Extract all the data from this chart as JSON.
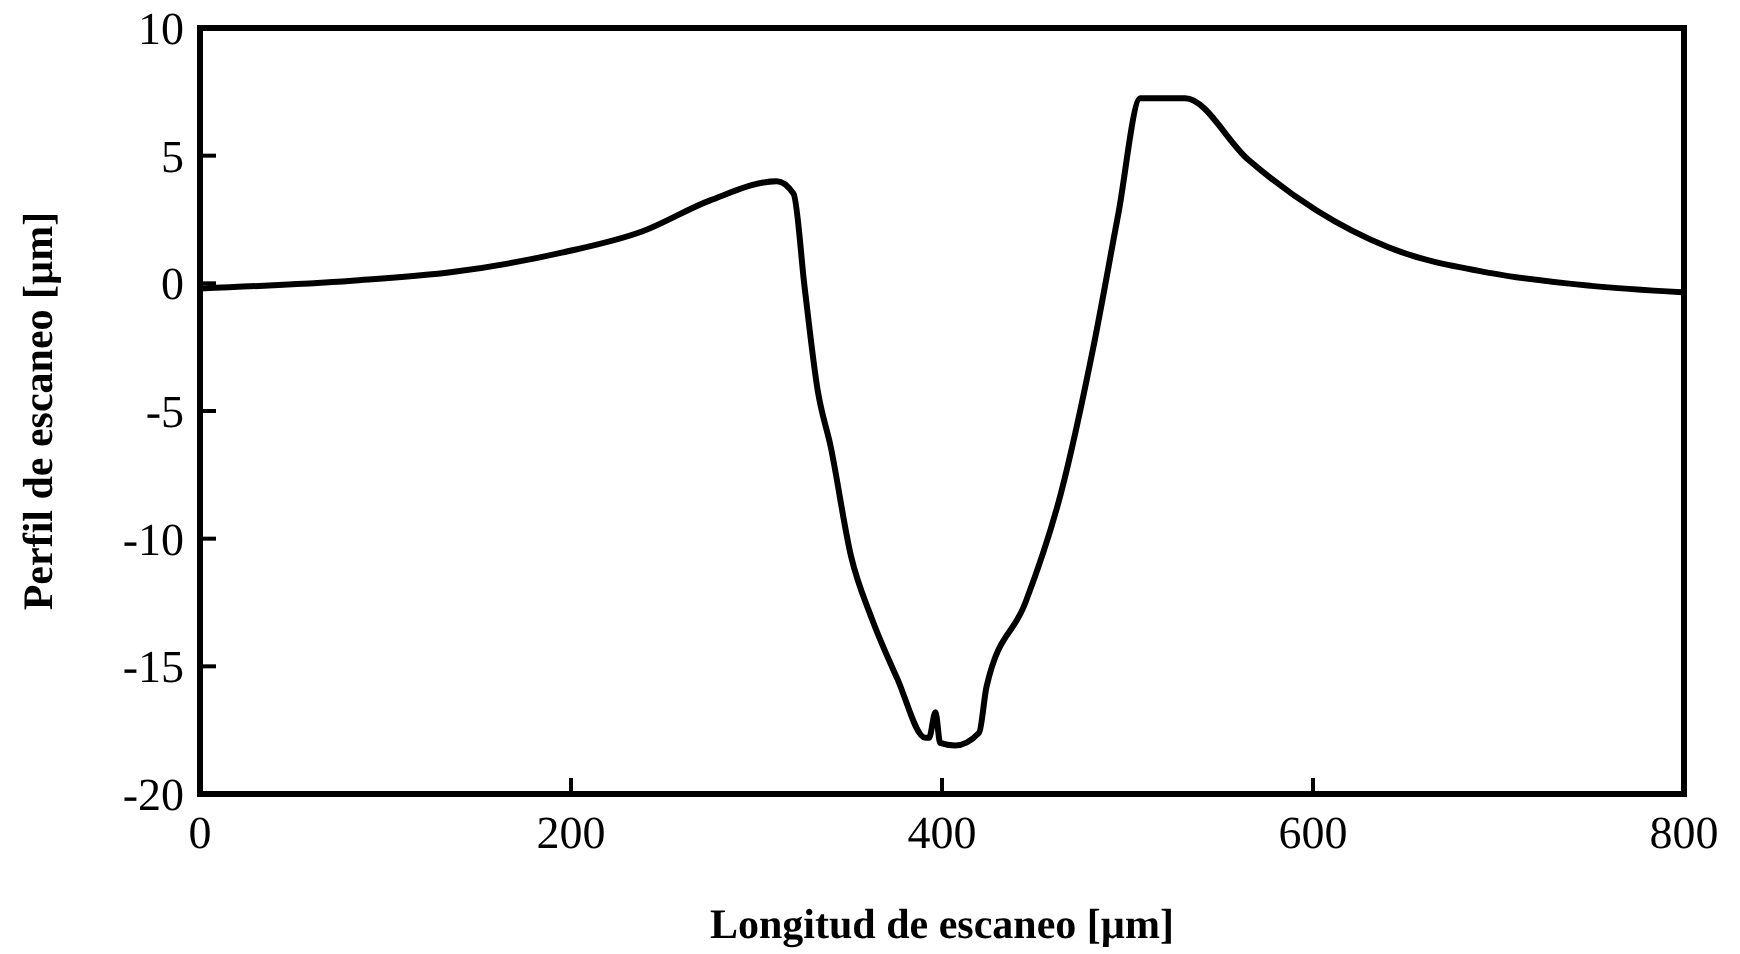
{
  "chart_data": {
    "type": "line",
    "xlabel": "Longitud de escaneo [µm]",
    "ylabel": "Perfil de escaneo [µm]",
    "xlim": [
      0,
      800
    ],
    "ylim": [
      -20,
      10
    ],
    "xticks": [
      0,
      200,
      400,
      600,
      800
    ],
    "yticks": [
      -20,
      -15,
      -10,
      -5,
      0,
      5,
      10
    ],
    "grid": false,
    "marker": "none",
    "line_style": "solid",
    "series": [
      {
        "color": "#000000",
        "x": [
          0,
          82,
          137,
          195,
          239,
          275,
          311,
          320,
          326,
          333,
          340,
          351,
          362,
          376,
          391,
          393,
          396.5,
          399,
          407,
          420,
          424,
          445,
          464,
          482,
          495,
          507,
          531,
          565,
          602,
          641,
          696,
          750,
          799
        ],
        "values": [
          -0.2,
          0.1,
          0.45,
          1.2,
          2.05,
          3.25,
          4.0,
          3.5,
          -0.2,
          -4.2,
          -6.4,
          -10.7,
          -13.1,
          -15.5,
          -17.8,
          -17.8,
          -16.8,
          -18.0,
          -18.1,
          -17.6,
          -15.8,
          -12.5,
          -8.25,
          -2.35,
          2.7,
          7.25,
          7.25,
          4.85,
          2.85,
          1.4,
          0.4,
          -0.1,
          -0.35
        ]
      }
    ]
  }
}
